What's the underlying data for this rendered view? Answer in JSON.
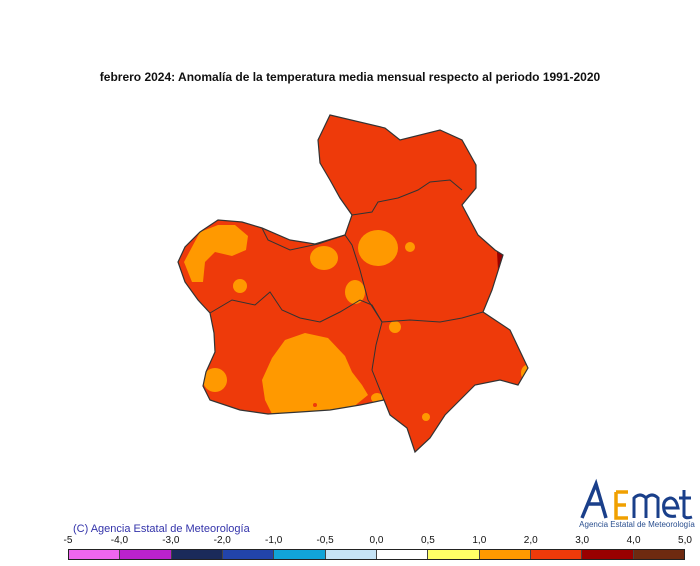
{
  "title": "febrero 2024: Anomalía de la temperatura media mensual respecto al periodo 1991-2020",
  "copyright": "(C) Agencia Estatal de Meteorología",
  "logo": {
    "text": "AEmet",
    "subtitle": "Agencia Estatal de Meteorología"
  },
  "legend": {
    "tick_labels": [
      "-5",
      "-4,0",
      "-3,0",
      "-2,0",
      "-1,0",
      "-0,5",
      "0,0",
      "0,5",
      "1,0",
      "2,0",
      "3,0",
      "4,0",
      "5,0"
    ],
    "colors": [
      "#ee66ee",
      "#bb22cc",
      "#1a2a5a",
      "#2244aa",
      "#11a4d8",
      "#c6e4f6",
      "#ffffff",
      "#ffff66",
      "#ff9900",
      "#ee3a0a",
      "#990000",
      "#6e2a10"
    ]
  },
  "map_colors": {
    "anomaly_2_3": "#ee3a0a",
    "anomaly_1_2": "#ff9900",
    "anomaly_3_4": "#990000",
    "boundary": "#333333"
  }
}
